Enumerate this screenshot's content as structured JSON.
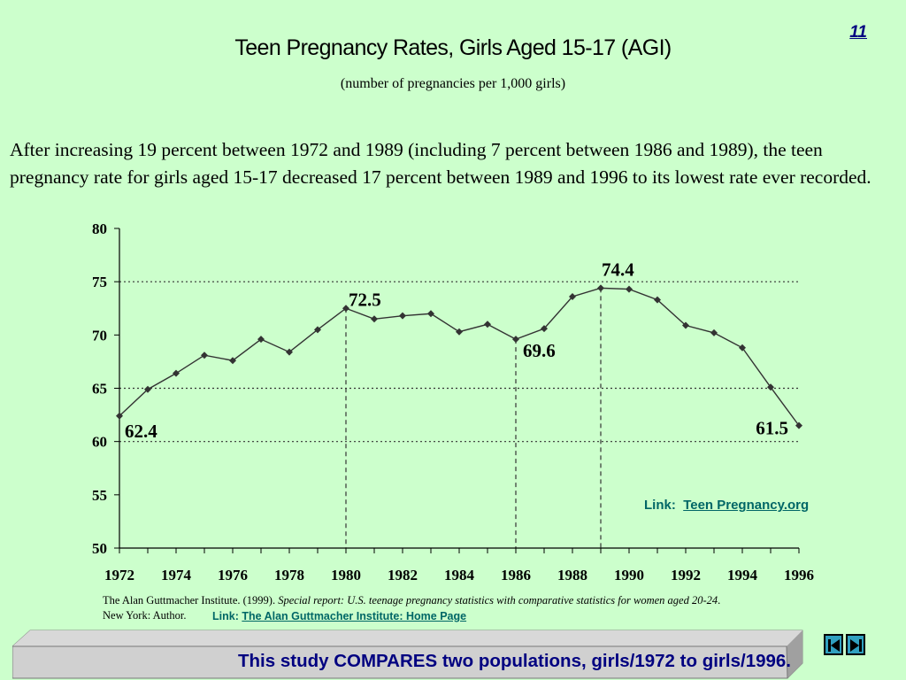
{
  "page_number": "11",
  "title": "Teen Pregnancy Rates, Girls Aged 15-17 (AGI)",
  "subtitle": "(number of pregnancies per 1,000 girls)",
  "summary": "After increasing 19 percent between 1972 and 1989 (including 7 percent between 1986 and 1989), the teen pregnancy rate for girls aged 15-17 decreased 17 percent between 1989 and 1996 to its lowest rate ever recorded.",
  "links": {
    "teen_prefix": "Link:",
    "teen_label": "Teen Pregnancy.org",
    "agi_prefix": "Link:",
    "agi_label": "The Alan Guttmacher Institute: Home Page"
  },
  "citation": {
    "plain": "The Alan Guttmacher Institute. (1999). ",
    "italic": "Special report: U.S. teenage pregnancy statistics with comparative statistics for women aged 20-24",
    "end": ".",
    "line2": "New York: Author."
  },
  "banner_text": "This  study COMPARES two populations, girls/1972  to girls/1996.",
  "nav": {
    "prev_icon": "first-page-icon",
    "next_icon": "last-page-icon"
  },
  "colors": {
    "background": "#ccffcc",
    "link": "#006666",
    "banner_text": "#000080",
    "line": "#333333"
  },
  "chart_data": {
    "type": "line",
    "title": "",
    "xlabel": "",
    "ylabel": "",
    "ylim": [
      50,
      80
    ],
    "yticks": [
      50,
      55,
      60,
      65,
      70,
      75,
      80
    ],
    "xlim": [
      1972,
      1996
    ],
    "xticks": [
      1972,
      1974,
      1976,
      1978,
      1980,
      1982,
      1984,
      1986,
      1988,
      1990,
      1992,
      1994,
      1996
    ],
    "grid": "horizontal dotted at 60, 65, 75",
    "x": [
      1972,
      1973,
      1974,
      1975,
      1976,
      1977,
      1978,
      1979,
      1980,
      1981,
      1982,
      1983,
      1984,
      1985,
      1986,
      1987,
      1988,
      1989,
      1990,
      1991,
      1992,
      1993,
      1994,
      1995,
      1996
    ],
    "values": [
      62.4,
      64.9,
      66.4,
      68.1,
      67.6,
      69.6,
      68.4,
      70.5,
      72.5,
      71.5,
      71.8,
      72.0,
      70.3,
      71.0,
      69.6,
      70.6,
      73.6,
      74.4,
      74.3,
      73.3,
      70.9,
      70.2,
      68.8,
      65.1,
      61.5
    ],
    "annotations": [
      {
        "x": 1972,
        "label": "62.4"
      },
      {
        "x": 1980,
        "label": "72.5"
      },
      {
        "x": 1986,
        "label": "69.6"
      },
      {
        "x": 1989,
        "label": "74.4"
      },
      {
        "x": 1996,
        "label": "61.5"
      }
    ],
    "vlines": [
      1980,
      1986,
      1989
    ]
  }
}
